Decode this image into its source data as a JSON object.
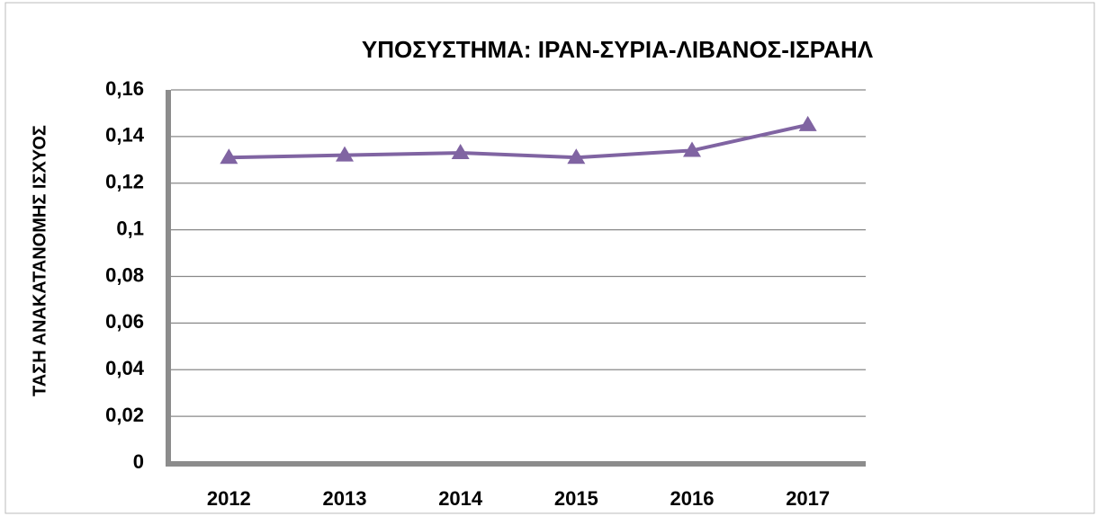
{
  "chart_data": {
    "type": "line",
    "title": "ΥΠΟΣΥΣΤΗΜΑ: ΙΡΑΝ-ΣΥΡΙΑ-ΛΙΒΑΝΟΣ-ΙΣΡΑΗΛ",
    "y_label": "ΤΑΣΗ ΑΝΑΚΑΤΑΝΟΜΗΣ  ΙΣΧΥΟΣ",
    "categories": [
      "2012",
      "2013",
      "2014",
      "2015",
      "2016",
      "2017"
    ],
    "series": [
      {
        "color": "#8064a2",
        "values": [
          0.131,
          0.132,
          0.133,
          0.131,
          0.134,
          0.145
        ]
      }
    ],
    "ylim": [
      0,
      0.16
    ],
    "yticks": [
      0,
      {
        "value": 0.02,
        "label": "0,02"
      },
      {
        "value": 0.04,
        "label": "0,04"
      },
      {
        "value": 0.06,
        "label": "0,06"
      },
      {
        "value": 0.08,
        "label": "0,08"
      },
      {
        "value": 0.1,
        "label": "0,1"
      },
      {
        "value": 0.12,
        "label": "0,12"
      },
      {
        "value": 0.14,
        "label": "0,14"
      },
      {
        "value": 0.16,
        "label": "0,16"
      }
    ],
    "grid": true
  }
}
